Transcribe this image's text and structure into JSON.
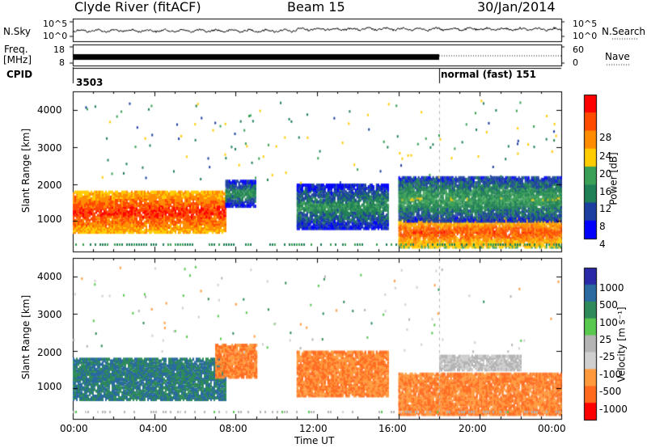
{
  "header": {
    "station": "Clyde River (fitACF)",
    "beam": "Beam 15",
    "date": "30/Jan/2014"
  },
  "strip": {
    "noise_label": "N.Sky",
    "noise_ticks": [
      "10^5",
      "10^0"
    ],
    "noise_right_ticks": [
      "10^5",
      "10^0"
    ],
    "search_label": "N.Search",
    "freq_label_1": "Freq.",
    "freq_label_2": "[MHz]",
    "freq_ticks": [
      "18",
      "8"
    ],
    "nave_ticks": [
      "60",
      "0"
    ],
    "nave_label": "Nave",
    "cpid_label": "CPID",
    "cpid_start": "3503",
    "cpid_change": "normal (fast) 151"
  },
  "axes": {
    "ylabel": "Slant Range [km]",
    "xlabel": "Time UT",
    "yticks": [
      "4000",
      "3000",
      "2000",
      "1000"
    ],
    "xticks": [
      "00:00",
      "04:00",
      "08:00",
      "12:00",
      "16:00",
      "20:00",
      "00:00"
    ]
  },
  "power_scale": {
    "label": "Power [dB]",
    "ticks": [
      "28",
      "24",
      "20",
      "16",
      "12",
      "8",
      "4"
    ],
    "colors": [
      "#ff0000",
      "#ff4a00",
      "#ff8c00",
      "#ffcc00",
      "#3aa055",
      "#1f7f55",
      "#1b3fa0",
      "#0000ff"
    ]
  },
  "velocity_scale": {
    "label": "Velocity [m s⁻¹]",
    "ticks": [
      "1000",
      "500",
      "100",
      "25",
      "-25",
      "-100",
      "-500",
      "-1000"
    ],
    "colors": [
      "#2a2aa8",
      "#2a6aa0",
      "#2e8a5a",
      "#59c84f",
      "#b4b4b4",
      "#cfcfcf",
      "#ff9a3c",
      "#ff6a1e",
      "#ff0000"
    ]
  },
  "chart_data": [
    {
      "type": "heatmap",
      "title": "Power [dB]",
      "xlabel": "Time UT",
      "ylabel": "Slant Range [km]",
      "xlim": [
        "00:00",
        "24:00"
      ],
      "ylim": [
        180,
        4500
      ],
      "color_range": [
        0,
        30
      ],
      "regions": [
        {
          "t_start": "00:00",
          "t_end": "07:30",
          "range_km": [
            700,
            1800
          ],
          "power_db": 26
        },
        {
          "t_start": "07:30",
          "t_end": "09:00",
          "range_km": [
            1400,
            2100
          ],
          "power_db": 10
        },
        {
          "t_start": "11:00",
          "t_end": "15:30",
          "range_km": [
            800,
            2000
          ],
          "power_db": 10
        },
        {
          "t_start": "16:00",
          "t_end": "24:00",
          "range_km": [
            300,
            1100
          ],
          "power_db": 24
        },
        {
          "t_start": "16:00",
          "t_end": "24:00",
          "range_km": [
            1000,
            2200
          ],
          "power_db": 12
        }
      ]
    },
    {
      "type": "heatmap",
      "title": "Velocity [m s⁻¹]",
      "xlabel": "Time UT",
      "ylabel": "Slant Range [km]",
      "xlim": [
        "00:00",
        "24:00"
      ],
      "ylim": [
        180,
        4500
      ],
      "color_range": [
        -1000,
        1000
      ],
      "regions": [
        {
          "t_start": "00:00",
          "t_end": "07:30",
          "range_km": [
            700,
            1800
          ],
          "velocity_ms": 500
        },
        {
          "t_start": "07:00",
          "t_end": "09:00",
          "range_km": [
            1300,
            2200
          ],
          "velocity_ms": -500
        },
        {
          "t_start": "11:00",
          "t_end": "15:30",
          "range_km": [
            800,
            2000
          ],
          "velocity_ms": -500
        },
        {
          "t_start": "16:00",
          "t_end": "24:00",
          "range_km": [
            300,
            1400
          ],
          "velocity_ms": -500
        },
        {
          "t_start": "18:00",
          "t_end": "22:00",
          "range_km": [
            1500,
            1900
          ],
          "velocity_ms": -25
        }
      ]
    }
  ]
}
